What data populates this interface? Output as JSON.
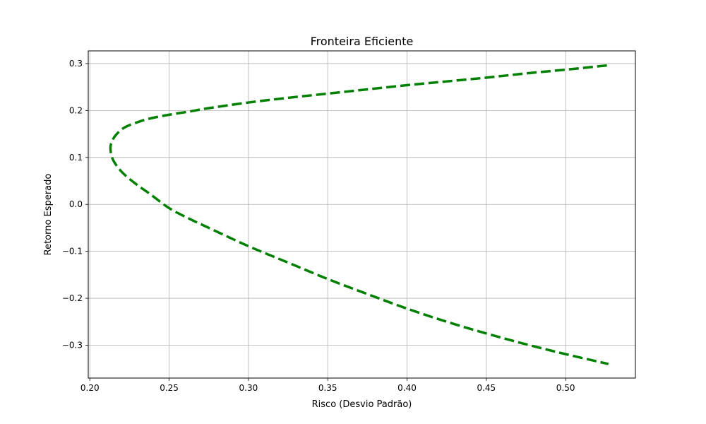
{
  "chart_data": {
    "type": "line",
    "title": "Fronteira Eficiente",
    "xlabel": "Risco (Desvio Padrão)",
    "ylabel": "Retorno Esperado",
    "xlim": [
      0.199,
      0.544
    ],
    "ylim": [
      -0.37,
      0.327
    ],
    "grid": true,
    "xticks": [
      0.2,
      0.25,
      0.3,
      0.35,
      0.4,
      0.45,
      0.5
    ],
    "xtick_labels": [
      "0.20",
      "0.25",
      "0.30",
      "0.35",
      "0.40",
      "0.45",
      "0.50"
    ],
    "yticks": [
      -0.3,
      -0.2,
      -0.1,
      0.0,
      0.1,
      0.2,
      0.3
    ],
    "ytick_labels": [
      "−0.3",
      "−0.2",
      "−0.1",
      "0.0",
      "0.1",
      "0.2",
      "0.3"
    ],
    "series": [
      {
        "color": "#008000",
        "line_style": "dashed",
        "x": [
          0.526,
          0.5,
          0.475,
          0.45,
          0.425,
          0.4,
          0.375,
          0.35,
          0.325,
          0.3,
          0.275,
          0.263,
          0.25,
          0.238,
          0.23,
          0.222,
          0.217,
          0.214,
          0.213,
          0.214,
          0.217,
          0.222,
          0.23,
          0.238,
          0.25,
          0.263,
          0.275,
          0.3,
          0.325,
          0.35,
          0.375,
          0.4,
          0.425,
          0.45,
          0.475,
          0.5,
          0.527
        ],
        "y": [
          0.296,
          0.287,
          0.279,
          0.27,
          0.262,
          0.254,
          0.245,
          0.236,
          0.227,
          0.217,
          0.205,
          0.198,
          0.191,
          0.183,
          0.175,
          0.164,
          0.15,
          0.135,
          0.12,
          0.1,
          0.082,
          0.063,
          0.041,
          0.022,
          -0.008,
          -0.031,
          -0.05,
          -0.089,
          -0.124,
          -0.159,
          -0.191,
          -0.222,
          -0.25,
          -0.275,
          -0.298,
          -0.319,
          -0.34
        ]
      }
    ]
  }
}
